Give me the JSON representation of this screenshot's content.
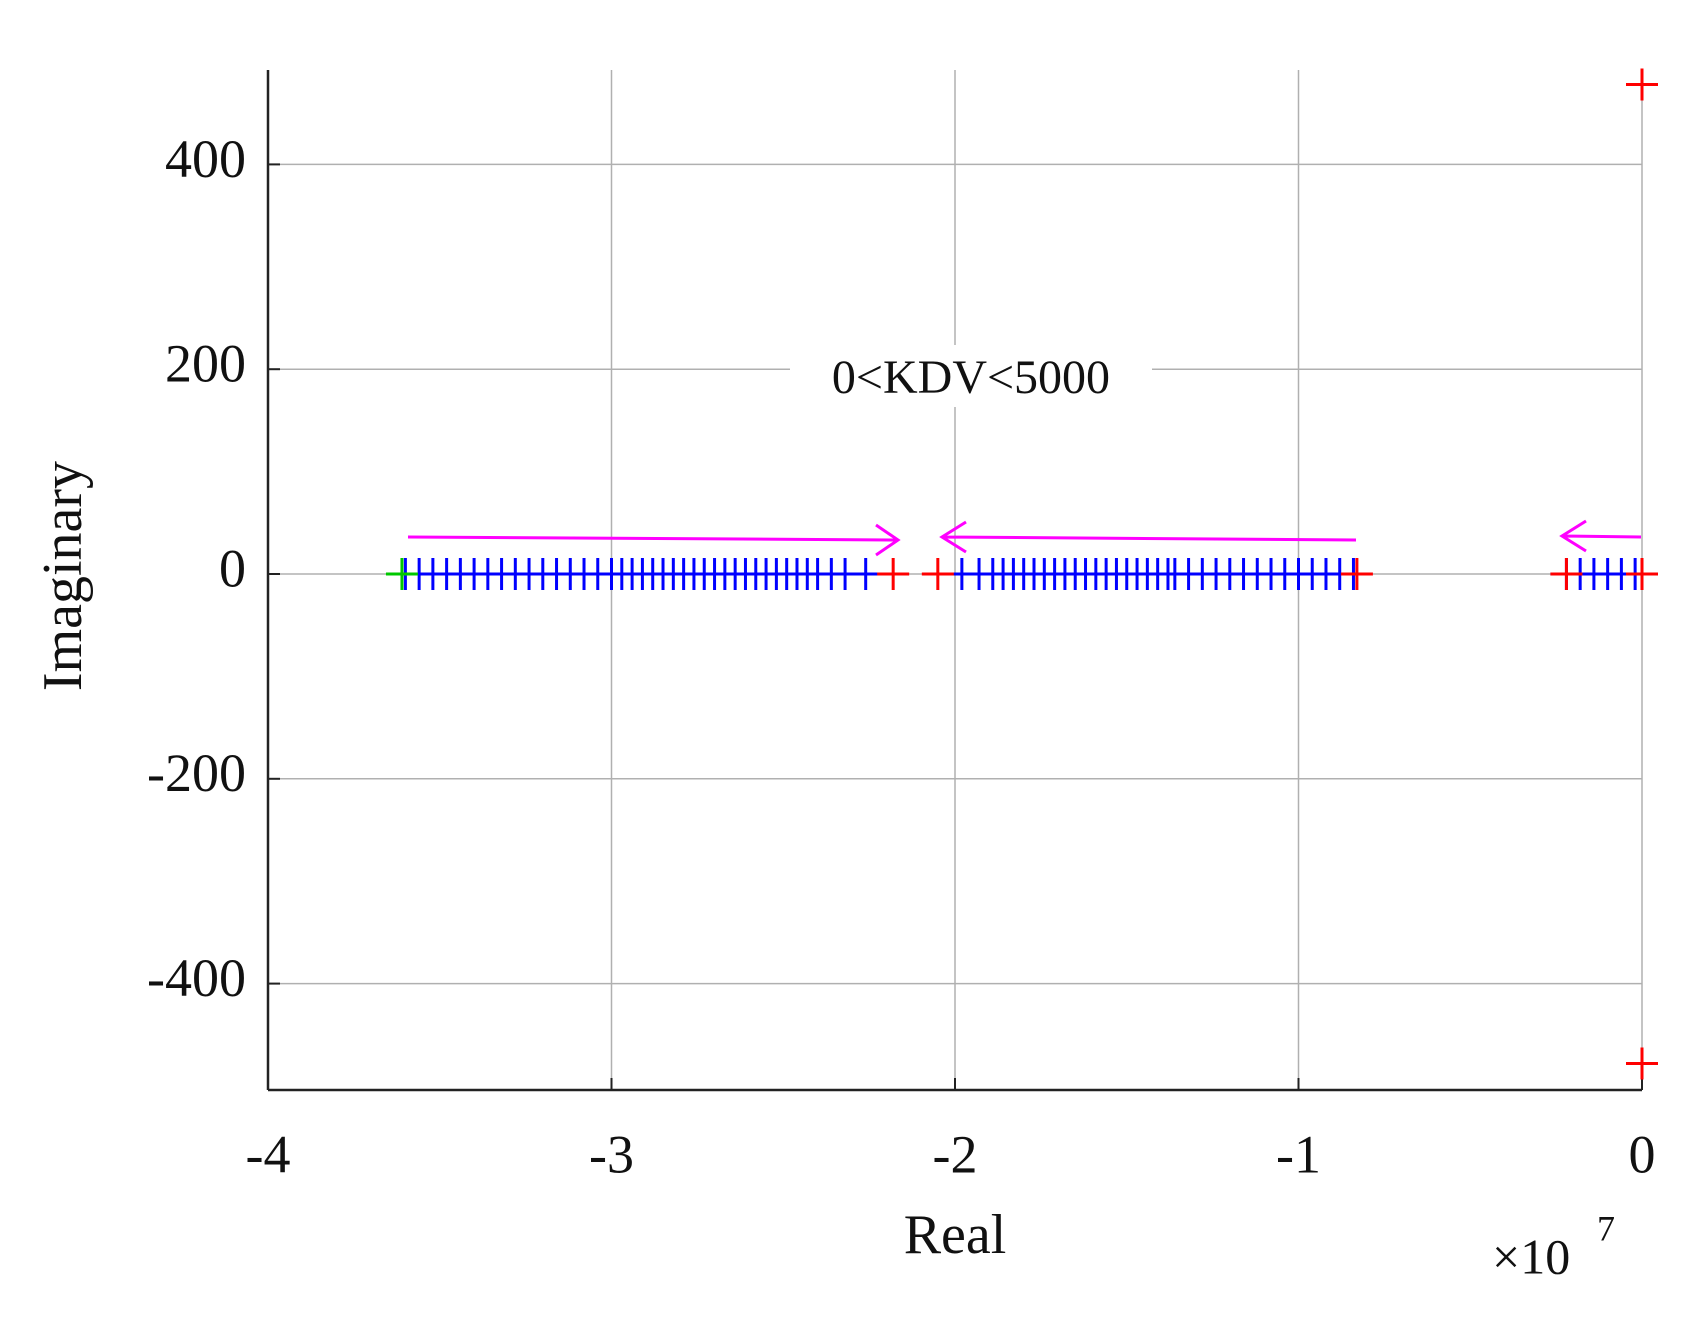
{
  "chart_data": {
    "type": "scatter",
    "x_label": "Real",
    "y_label": "Imaginary",
    "x_multiplier": {
      "base": "×10",
      "exponent": "7"
    },
    "annotation": "0<KDV<5000",
    "xlim": [
      -4,
      0
    ],
    "xticks": [
      -4,
      -3,
      -2,
      -1,
      0
    ],
    "ylim": [
      -500,
      500
    ],
    "yticks": [
      -400,
      -200,
      0,
      200,
      400
    ],
    "grid": true,
    "series": [
      {
        "color": "#0000ff",
        "marker": "+",
        "x": [
          -3.6,
          -3.56,
          -3.52,
          -3.48,
          -3.44,
          -3.4,
          -3.36,
          -3.32,
          -3.28,
          -3.24,
          -3.2,
          -3.16,
          -3.12,
          -3.08,
          -3.04,
          -3.0,
          -2.97,
          -2.94,
          -2.91,
          -2.88,
          -2.85,
          -2.82,
          -2.79,
          -2.76,
          -2.73,
          -2.7,
          -2.67,
          -2.64,
          -2.61,
          -2.58,
          -2.55,
          -2.52,
          -2.49,
          -2.46,
          -2.43,
          -2.4,
          -2.36,
          -2.32,
          -2.26,
          -1.98,
          -1.93,
          -1.89,
          -1.86,
          -1.83,
          -1.8,
          -1.77,
          -1.74,
          -1.71,
          -1.68,
          -1.65,
          -1.62,
          -1.59,
          -1.56,
          -1.53,
          -1.5,
          -1.47,
          -1.44,
          -1.41,
          -1.38,
          -1.36,
          -1.32,
          -1.28,
          -1.24,
          -1.2,
          -1.16,
          -1.12,
          -1.08,
          -1.04,
          -1.0,
          -0.96,
          -0.92,
          -0.88,
          -0.84,
          -0.22,
          -0.18,
          -0.14,
          -0.1,
          -0.06,
          -0.02,
          0
        ],
        "values": [
          0,
          0,
          0,
          0,
          0,
          0,
          0,
          0,
          0,
          0,
          0,
          0,
          0,
          0,
          0,
          0,
          0,
          0,
          0,
          0,
          0,
          0,
          0,
          0,
          0,
          0,
          0,
          0,
          0,
          0,
          0,
          0,
          0,
          0,
          0,
          0,
          0,
          0,
          0,
          0,
          0,
          0,
          0,
          0,
          0,
          0,
          0,
          0,
          0,
          0,
          0,
          0,
          0,
          0,
          0,
          0,
          0,
          0,
          0,
          0,
          0,
          0,
          0,
          0,
          0,
          0,
          0,
          0,
          0,
          0,
          0,
          0,
          0,
          0,
          0,
          0,
          0,
          0,
          0,
          0
        ]
      },
      {
        "color": "#00c800",
        "marker": "+",
        "x": [
          -3.61
        ],
        "values": [
          0
        ]
      },
      {
        "color": "#ff0000",
        "marker": "+",
        "x": [
          -2.18,
          -2.05,
          -0.83,
          -0.22,
          0,
          0,
          0
        ],
        "values": [
          0,
          0,
          0,
          0,
          0,
          478,
          -478
        ]
      }
    ]
  }
}
